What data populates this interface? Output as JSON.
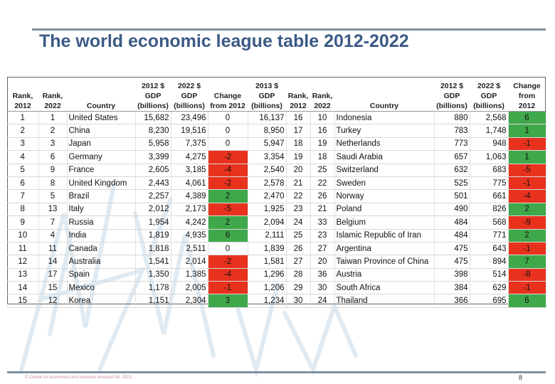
{
  "title": "The world economic league table 2012-2022",
  "footer": "© Centre for economics and business research ltd, 2013",
  "page_number": "8",
  "colors": {
    "positive": "#3fa84a",
    "negative": "#e8321e",
    "title": "#3c5a86"
  },
  "headers": {
    "rank2012": "Rank, 2012",
    "rank2022": "Rank, 2022",
    "country": "Country",
    "gdp2012": "2012 $ GDP (billions)",
    "gdp2022": "2022 $ GDP (billions)",
    "change": "Change from 2012"
  },
  "left_rows": [
    [
      "1",
      "1",
      "United States",
      "15,682",
      "23,496",
      "0"
    ],
    [
      "2",
      "2",
      "China",
      "8,230",
      "19,516",
      "0"
    ],
    [
      "3",
      "3",
      "Japan",
      "5,958",
      "7,375",
      "0"
    ],
    [
      "4",
      "6",
      "Germany",
      "3,399",
      "4,275",
      "-2"
    ],
    [
      "5",
      "9",
      "France",
      "2,605",
      "3,185",
      "-4"
    ],
    [
      "6",
      "8",
      "United Kingdom",
      "2,443",
      "4,061",
      "-2"
    ],
    [
      "7",
      "5",
      "Brazil",
      "2,257",
      "4,389",
      "2"
    ],
    [
      "8",
      "13",
      "Italy",
      "2,012",
      "2,173",
      "-5"
    ],
    [
      "9",
      "7",
      "Russia",
      "1,954",
      "4,242",
      "2"
    ],
    [
      "10",
      "4",
      "India",
      "1,819",
      "4,935",
      "6"
    ],
    [
      "11",
      "11",
      "Canada",
      "1,818",
      "2,511",
      "0"
    ],
    [
      "12",
      "14",
      "Australia",
      "1,541",
      "2,014",
      "-2"
    ],
    [
      "13",
      "17",
      "Spain",
      "1,350",
      "1,385",
      "-4"
    ],
    [
      "14",
      "15",
      "Mexico",
      "1,178",
      "2,005",
      "-1"
    ],
    [
      "15",
      "12",
      "Korea",
      "1,151",
      "2,304",
      "3"
    ]
  ],
  "right_rows": [
    [
      "16,137",
      "16",
      "10",
      "Indonesia",
      "880",
      "2,568",
      "6"
    ],
    [
      "8,950",
      "17",
      "16",
      "Turkey",
      "783",
      "1,748",
      "1"
    ],
    [
      "5,947",
      "18",
      "19",
      "Netherlands",
      "773",
      "948",
      "-1"
    ],
    [
      "3,354",
      "19",
      "18",
      "Saudi Arabia",
      "657",
      "1,063",
      "1"
    ],
    [
      "2,540",
      "20",
      "25",
      "Switzerland",
      "632",
      "683",
      "-5"
    ],
    [
      "2,578",
      "21",
      "22",
      "Sweden",
      "525",
      "775",
      "-1"
    ],
    [
      "2,470",
      "22",
      "26",
      "Norway",
      "501",
      "661",
      "-4"
    ],
    [
      "1,925",
      "23",
      "21",
      "Poland",
      "490",
      "826",
      "2"
    ],
    [
      "2,094",
      "24",
      "33",
      "Belgium",
      "484",
      "568",
      "-9"
    ],
    [
      "2,111",
      "25",
      "23",
      "Islamic Republic of Iran",
      "484",
      "771",
      "2"
    ],
    [
      "1,839",
      "26",
      "27",
      "Argentina",
      "475",
      "643",
      "-1"
    ],
    [
      "1,581",
      "27",
      "20",
      "Taiwan Province of China",
      "475",
      "894",
      "7"
    ],
    [
      "1,296",
      "28",
      "36",
      "Austria",
      "398",
      "514",
      "-8"
    ],
    [
      "1,206",
      "29",
      "30",
      "South Africa",
      "384",
      "629",
      "-1"
    ],
    [
      "1,234",
      "30",
      "24",
      "Thailand",
      "366",
      "695",
      "6"
    ]
  ],
  "right_headers": {
    "gdp2013": "2013 $ GDP (billions)",
    "rank2012": "Rank, 2012",
    "rank2022": "Rank, 2022",
    "country": "Country",
    "gdp2012": "2012 $ GDP (billions)",
    "gdp2022": "2022 $ GDP (billions)",
    "change": "Change from 2012"
  }
}
